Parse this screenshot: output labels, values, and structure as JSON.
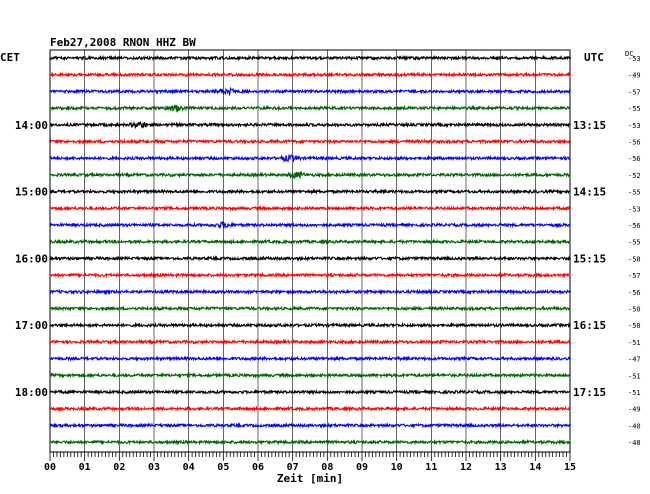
{
  "chart_data": {
    "type": "line",
    "title": "Feb27,2008  RNON HHZ BW",
    "left_zone_label": "CET",
    "right_zone_label": "UTC",
    "offset_header": "DC",
    "xlabel": "Zeit [min]",
    "xlim": [
      0,
      15
    ],
    "x_ticks": [
      "00",
      "01",
      "02",
      "03",
      "04",
      "05",
      "06",
      "07",
      "08",
      "09",
      "10",
      "11",
      "12",
      "13",
      "14",
      "15"
    ],
    "trace_count": 24,
    "trace_colors": [
      "#000000",
      "#ff0000",
      "#0000ff",
      "#006400"
    ],
    "trace_color_names": [
      "black",
      "red",
      "blue",
      "green"
    ],
    "left_hour_labels": [
      {
        "trace": 4,
        "text": "14:00"
      },
      {
        "trace": 8,
        "text": "15:00"
      },
      {
        "trace": 12,
        "text": "16:00"
      },
      {
        "trace": 16,
        "text": "17:00"
      },
      {
        "trace": 20,
        "text": "18:00"
      }
    ],
    "right_hour_labels": [
      {
        "trace": 4,
        "text": "13:15"
      },
      {
        "trace": 8,
        "text": "14:15"
      },
      {
        "trace": 12,
        "text": "15:15"
      },
      {
        "trace": 16,
        "text": "16:15"
      },
      {
        "trace": 20,
        "text": "17:15"
      }
    ],
    "dc_offsets": [
      "-53",
      "-49",
      "-57",
      "-55",
      "-53",
      "-56",
      "-56",
      "-52",
      "-55",
      "-53",
      "-56",
      "-55",
      "-58",
      "-57",
      "-56",
      "-50",
      "-50",
      "-51",
      "-47",
      "-51",
      "-51",
      "-49",
      "-40",
      "-48"
    ],
    "events": [
      {
        "trace": 2,
        "minute": 5.1
      },
      {
        "trace": 3,
        "minute": 3.6
      },
      {
        "trace": 4,
        "minute": 2.6
      },
      {
        "trace": 6,
        "minute": 6.9
      },
      {
        "trace": 7,
        "minute": 7.1
      },
      {
        "trace": 10,
        "minute": 5.0
      }
    ],
    "grid": true
  }
}
